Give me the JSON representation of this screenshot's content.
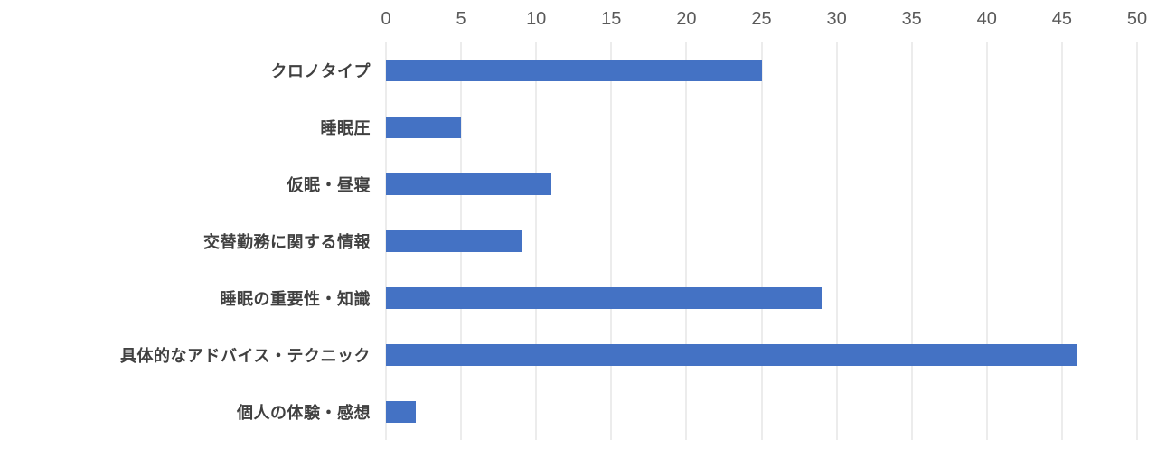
{
  "chart_data": {
    "type": "bar",
    "orientation": "horizontal",
    "categories": [
      "クロノタイプ",
      "睡眠圧",
      "仮眠・昼寝",
      "交替勤務に関する情報",
      "睡眠の重要性・知識",
      "具体的なアドバイス・テクニック",
      "個人の体験・感想"
    ],
    "values": [
      25,
      5,
      11,
      9,
      29,
      46,
      2
    ],
    "xlim": [
      0,
      50
    ],
    "x_ticks": [
      0,
      5,
      10,
      15,
      20,
      25,
      30,
      35,
      40,
      45,
      50
    ],
    "axis_position": "top",
    "grid": true,
    "legend": "none",
    "bar_color": "#4472c4",
    "gridline_color": "#d9d9d9",
    "category_label_color": "#404040",
    "tick_label_color": "#595959"
  }
}
